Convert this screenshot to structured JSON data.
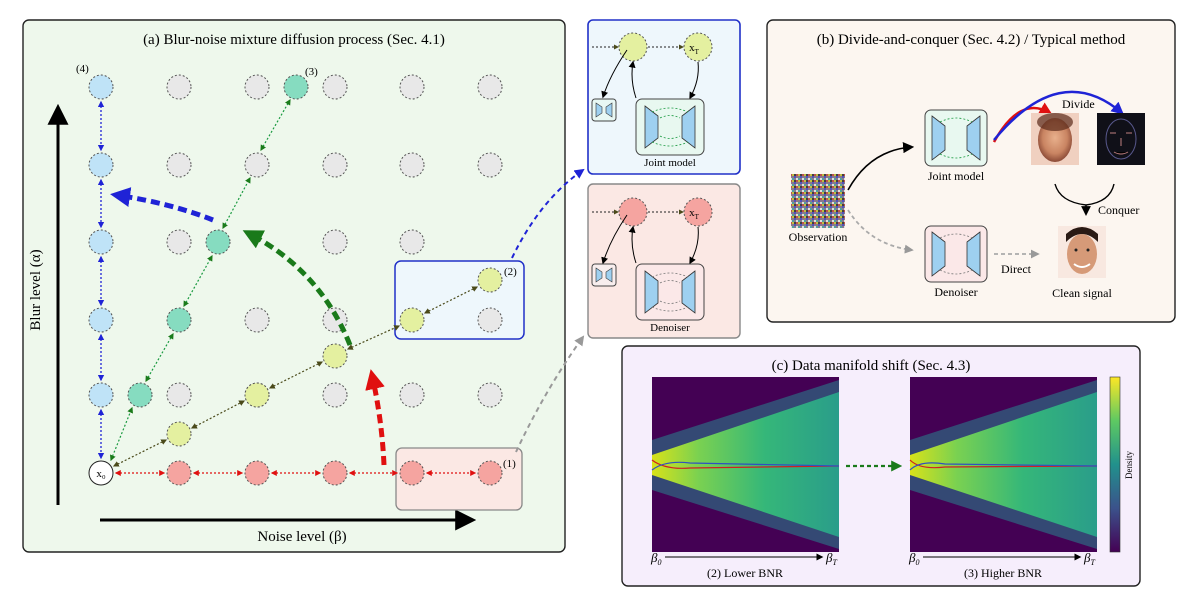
{
  "panel_a": {
    "title": "(a) Blur-noise mixture diffusion process (Sec. 4.1)",
    "y_axis_label": "Blur level (α)",
    "x_axis_label": "Noise level (β)",
    "origin_label": "x₀",
    "path_markers": [
      "(1)",
      "(2)",
      "(3)",
      "(4)"
    ]
  },
  "joint_box": {
    "xt_label": "x",
    "xt_sub": "T",
    "model_label": "Joint model"
  },
  "denoiser_box": {
    "xt_label": "x",
    "xt_sub": "T",
    "model_label": "Denoiser"
  },
  "panel_b": {
    "title": "(b) Divide-and-conquer (Sec. 4.2) / Typical method",
    "observation_label": "Observation",
    "joint_model_label": "Joint model",
    "denoiser_label": "Denoiser",
    "divide_label": "Divide",
    "conquer_label": "Conquer",
    "direct_label": "Direct",
    "clean_label": "Clean signal"
  },
  "panel_c": {
    "title": "(c) Data manifold shift (Sec. 4.3)",
    "left_plot_caption": "(2) Lower BNR",
    "right_plot_caption": "(3) Higher BNR",
    "x_start_label": "β",
    "x_start_sub": "0",
    "x_end_label": "β",
    "x_end_sub": "T",
    "colorbar_label": "Density"
  },
  "colors": {
    "blue": "#1f23d6",
    "green": "#1a7a1a",
    "red": "#e01010",
    "gray": "#999999",
    "node_blue": "#bfe3f7",
    "node_teal": "#86dcc0",
    "node_yellow": "#e4f0a0",
    "node_red": "#f5a4a0",
    "node_gray": "#e8e8e8"
  }
}
